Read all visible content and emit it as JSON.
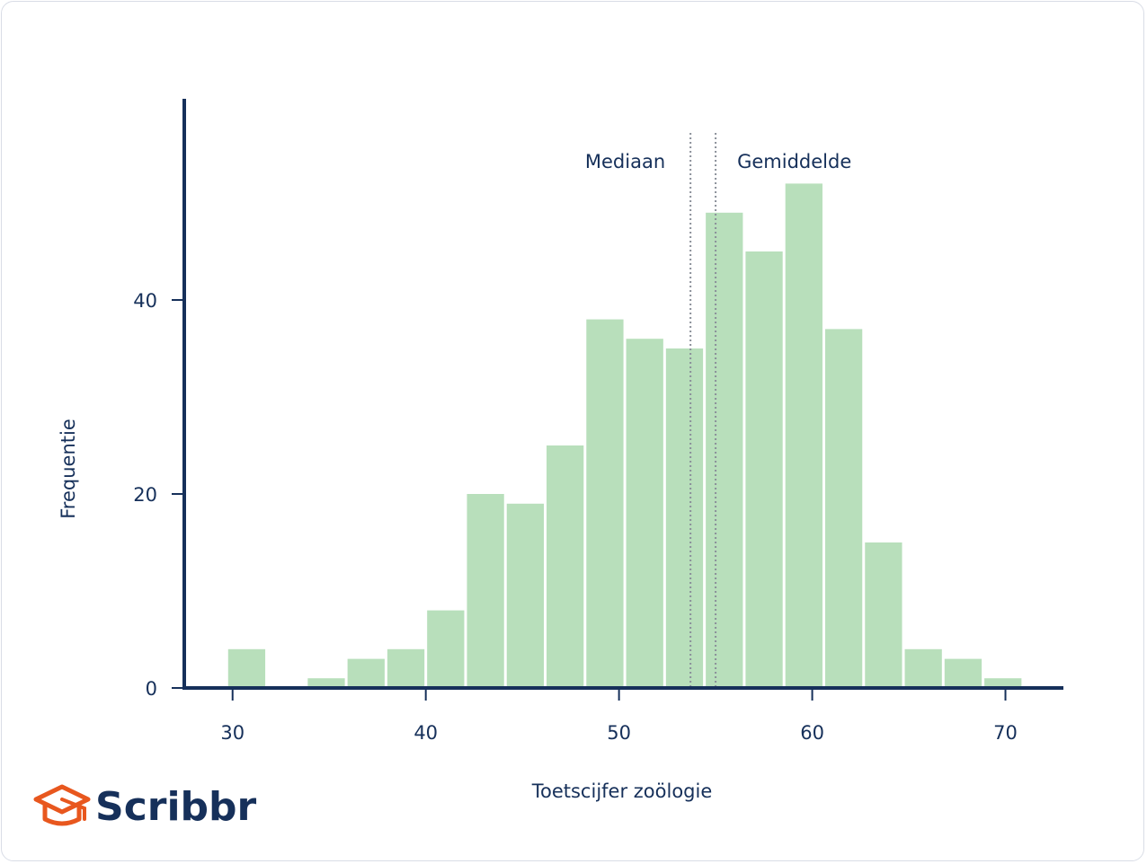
{
  "brand": {
    "name": "Scribbr",
    "logo_color": "#e8571e"
  },
  "colors": {
    "bar": "#b8dfbb",
    "axis": "#16305a",
    "text": "#16305a",
    "marker_line": "#8a8f99"
  },
  "chart_data": {
    "type": "bar",
    "subtype": "histogram",
    "xlabel": "Toetscijfer zoölogie",
    "ylabel": "Frequentie",
    "xlim": [
      27.5,
      73
    ],
    "ylim": [
      0,
      60
    ],
    "x_ticks": [
      30,
      40,
      50,
      60,
      70
    ],
    "y_ticks": [
      0,
      20,
      40
    ],
    "bin_width": 2.06,
    "bins": [
      {
        "start": 29.7,
        "count": 4
      },
      {
        "start": 31.76,
        "count": 0
      },
      {
        "start": 33.82,
        "count": 1
      },
      {
        "start": 35.88,
        "count": 3
      },
      {
        "start": 37.94,
        "count": 4
      },
      {
        "start": 40.0,
        "count": 8
      },
      {
        "start": 42.06,
        "count": 20
      },
      {
        "start": 44.12,
        "count": 19
      },
      {
        "start": 46.18,
        "count": 25
      },
      {
        "start": 48.24,
        "count": 38
      },
      {
        "start": 50.3,
        "count": 36
      },
      {
        "start": 52.36,
        "count": 35
      },
      {
        "start": 54.42,
        "count": 49
      },
      {
        "start": 56.48,
        "count": 45
      },
      {
        "start": 58.54,
        "count": 52
      },
      {
        "start": 60.6,
        "count": 37
      },
      {
        "start": 62.66,
        "count": 15
      },
      {
        "start": 64.72,
        "count": 4
      },
      {
        "start": 66.78,
        "count": 3
      },
      {
        "start": 68.84,
        "count": 1
      }
    ],
    "markers": [
      {
        "label": "Mediaan",
        "x": 53.7,
        "label_side": "left"
      },
      {
        "label": "Gemiddelde",
        "x": 55.0,
        "label_side": "right"
      }
    ],
    "grid": false,
    "legend": "none"
  }
}
